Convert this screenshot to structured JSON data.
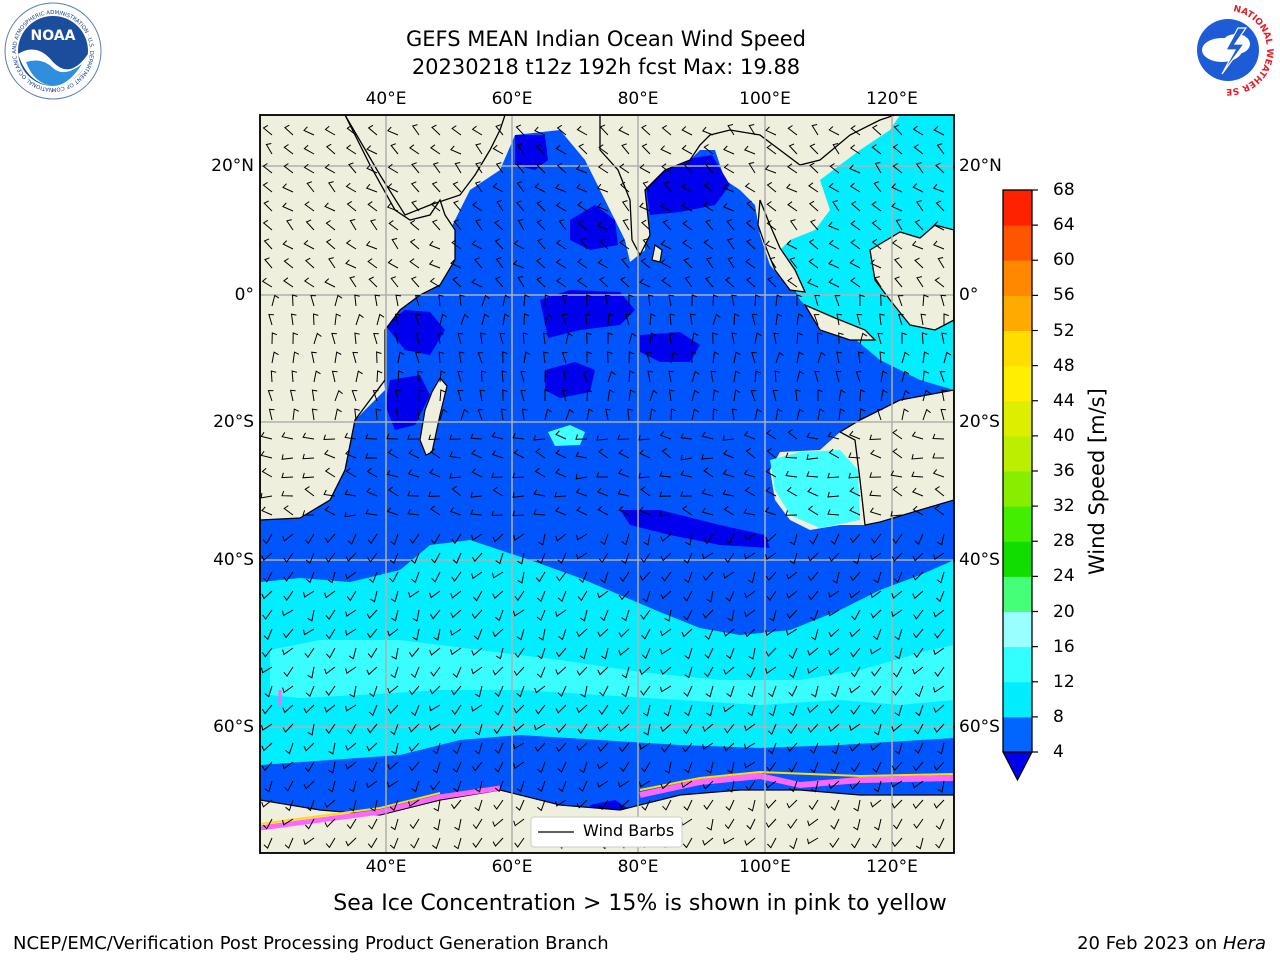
{
  "header": {
    "title_line1": "GEFS MEAN Indian Ocean Wind Speed",
    "title_line2": "20230218 t12z 192h fcst   Max: 19.88"
  },
  "logos": {
    "noaa": {
      "center_text": "NOAA",
      "ring_text": "NATIONAL OCEANIC AND ATMOSPHERIC ADMINISTRATION · U.S. DEPARTMENT OF COMMERCE"
    },
    "nws": {
      "ring_text": "NATIONAL WEATHER SERVICE"
    }
  },
  "map": {
    "lon_ticks": [
      "40°E",
      "60°E",
      "80°E",
      "100°E",
      "120°E"
    ],
    "lat_ticks_left": [
      "20°N",
      "0°",
      "20°S",
      "40°S",
      "60°S"
    ],
    "lat_ticks_right": [
      "20°N",
      "0°",
      "20°S",
      "40°S",
      "60°S"
    ],
    "legend_label": "Wind Barbs",
    "colors": {
      "land": "#efefdd",
      "blue": "#0055ff",
      "dark_blue": "#0000ee",
      "cyan": "#00f0ff",
      "light_cyan": "#44ffff",
      "grid": "#b0b0b0",
      "sea_ice": "#ff66ff"
    }
  },
  "colorbar": {
    "label": "Wind Speed [m/s]",
    "ticks": [
      "4",
      "8",
      "12",
      "16",
      "20",
      "24",
      "28",
      "32",
      "36",
      "40",
      "44",
      "48",
      "52",
      "56",
      "60",
      "64",
      "68"
    ],
    "colors": [
      "#0066ff",
      "#00eeff",
      "#33ffff",
      "#99ffff",
      "#44ff77",
      "#11dd00",
      "#44ee00",
      "#88ee00",
      "#bbee00",
      "#ddee00",
      "#ffee00",
      "#ffdd00",
      "#ffaa00",
      "#ff8800",
      "#ff5500",
      "#ff2200"
    ],
    "extend_color": "#0000ee"
  },
  "caption": "Sea Ice Concentration > 15% is shown in pink to yellow",
  "footer": {
    "left": "NCEP/EMC/Verification Post Processing Product Generation Branch",
    "date": "20 Feb 2023 on ",
    "host": "Hera"
  }
}
